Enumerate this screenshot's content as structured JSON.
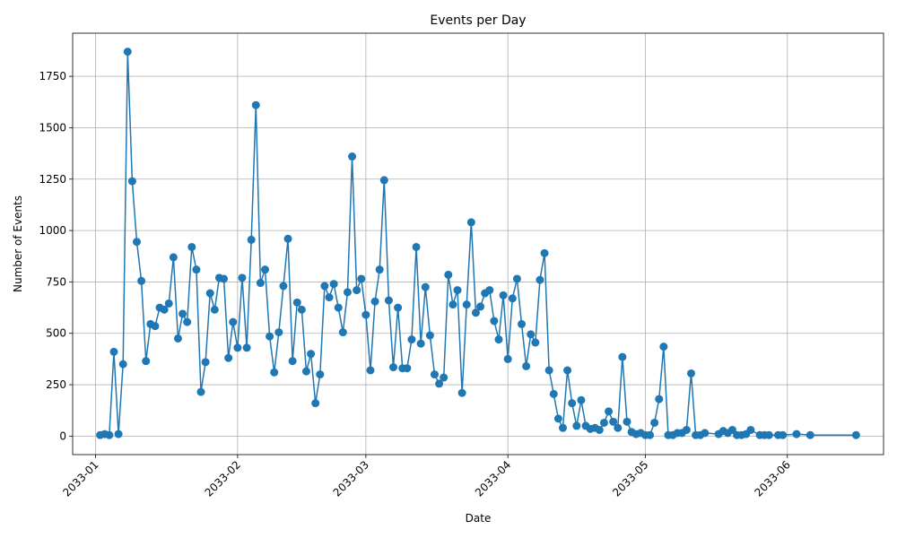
{
  "chart_data": {
    "type": "line",
    "title": "Events per Day",
    "xlabel": "Date",
    "ylabel": "Number of Events",
    "x_tick_labels": [
      "2033-01",
      "2033-02",
      "2033-03",
      "2033-04",
      "2033-05",
      "2033-06"
    ],
    "x_ticks": [
      "2033-01-01",
      "2033-02-01",
      "2033-03-01",
      "2033-04-01",
      "2033-05-01",
      "2033-06-01"
    ],
    "y_ticks": [
      0,
      250,
      500,
      750,
      1000,
      1250,
      1500,
      1750
    ],
    "xlim": [
      "2032-12-27",
      "2033-06-22"
    ],
    "ylim": [
      -90,
      1960
    ],
    "grid": true,
    "color": "#1f77b4",
    "marker": "circle",
    "series": [
      {
        "x": [
          "2033-01-02",
          "2033-01-03",
          "2033-01-04",
          "2033-01-05",
          "2033-01-06",
          "2033-01-07",
          "2033-01-08",
          "2033-01-09",
          "2033-01-10",
          "2033-01-11",
          "2033-01-12",
          "2033-01-13",
          "2033-01-14",
          "2033-01-15",
          "2033-01-16",
          "2033-01-17",
          "2033-01-18",
          "2033-01-19",
          "2033-01-20",
          "2033-01-21",
          "2033-01-22",
          "2033-01-23",
          "2033-01-24",
          "2033-01-25",
          "2033-01-26",
          "2033-01-27",
          "2033-01-28",
          "2033-01-29",
          "2033-01-30",
          "2033-01-31",
          "2033-02-01",
          "2033-02-02",
          "2033-02-03",
          "2033-02-04",
          "2033-02-05",
          "2033-02-06",
          "2033-02-07",
          "2033-02-08",
          "2033-02-09",
          "2033-02-10",
          "2033-02-11",
          "2033-02-12",
          "2033-02-13",
          "2033-02-14",
          "2033-02-15",
          "2033-02-16",
          "2033-02-17",
          "2033-02-18",
          "2033-02-19",
          "2033-02-20",
          "2033-02-21",
          "2033-02-22",
          "2033-02-23",
          "2033-02-24",
          "2033-02-25",
          "2033-02-26",
          "2033-02-27",
          "2033-02-28",
          "2033-03-01",
          "2033-03-02",
          "2033-03-03",
          "2033-03-04",
          "2033-03-05",
          "2033-03-06",
          "2033-03-07",
          "2033-03-08",
          "2033-03-09",
          "2033-03-10",
          "2033-03-11",
          "2033-03-12",
          "2033-03-13",
          "2033-03-14",
          "2033-03-15",
          "2033-03-16",
          "2033-03-17",
          "2033-03-18",
          "2033-03-19",
          "2033-03-20",
          "2033-03-21",
          "2033-03-22",
          "2033-03-23",
          "2033-03-24",
          "2033-03-25",
          "2033-03-26",
          "2033-03-27",
          "2033-03-28",
          "2033-03-29",
          "2033-03-30",
          "2033-03-31",
          "2033-04-01",
          "2033-04-02",
          "2033-04-03",
          "2033-04-04",
          "2033-04-05",
          "2033-04-06",
          "2033-04-07",
          "2033-04-08",
          "2033-04-09",
          "2033-04-10",
          "2033-04-11",
          "2033-04-12",
          "2033-04-13",
          "2033-04-14",
          "2033-04-15",
          "2033-04-16",
          "2033-04-17",
          "2033-04-18",
          "2033-04-19",
          "2033-04-20",
          "2033-04-21",
          "2033-04-22",
          "2033-04-23",
          "2033-04-24",
          "2033-04-25",
          "2033-04-26",
          "2033-04-27",
          "2033-04-28",
          "2033-04-29",
          "2033-04-30",
          "2033-05-01",
          "2033-05-02",
          "2033-05-03",
          "2033-05-04",
          "2033-05-05",
          "2033-05-06",
          "2033-05-07",
          "2033-05-08",
          "2033-05-09",
          "2033-05-10",
          "2033-05-11",
          "2033-05-12",
          "2033-05-13",
          "2033-05-14",
          "2033-05-17",
          "2033-05-18",
          "2033-05-19",
          "2033-05-20",
          "2033-05-21",
          "2033-05-22",
          "2033-05-23",
          "2033-05-24",
          "2033-05-26",
          "2033-05-27",
          "2033-05-28",
          "2033-05-30",
          "2033-05-31",
          "2033-06-03",
          "2033-06-06",
          "2033-06-16"
        ],
        "y": [
          5,
          10,
          5,
          410,
          10,
          350,
          1870,
          1240,
          945,
          755,
          365,
          545,
          535,
          625,
          615,
          645,
          870,
          475,
          595,
          555,
          920,
          810,
          215,
          360,
          695,
          615,
          770,
          765,
          380,
          555,
          430,
          770,
          430,
          955,
          1610,
          745,
          810,
          485,
          310,
          505,
          730,
          960,
          365,
          650,
          615,
          315,
          400,
          160,
          300,
          730,
          675,
          740,
          625,
          505,
          700,
          1360,
          710,
          765,
          590,
          320,
          655,
          810,
          1245,
          660,
          335,
          625,
          330,
          330,
          470,
          920,
          450,
          725,
          490,
          300,
          255,
          285,
          785,
          640,
          710,
          210,
          640,
          1040,
          600,
          630,
          695,
          710,
          560,
          470,
          685,
          375,
          670,
          765,
          545,
          340,
          495,
          455,
          760,
          890,
          320,
          205,
          85,
          40,
          320,
          160,
          50,
          175,
          50,
          35,
          40,
          30,
          65,
          120,
          70,
          40,
          385,
          70,
          20,
          10,
          15,
          5,
          5,
          65,
          180,
          435,
          5,
          5,
          15,
          15,
          30,
          305,
          5,
          5,
          15,
          10,
          25,
          15,
          30,
          5,
          5,
          10,
          30,
          5,
          5,
          5,
          5,
          5,
          10,
          5,
          5
        ]
      }
    ]
  }
}
